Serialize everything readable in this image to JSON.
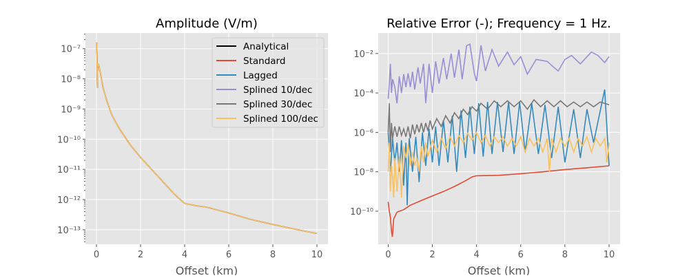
{
  "chart_data": [
    {
      "type": "line",
      "title": "Amplitude (V/m)",
      "xlabel": "Offset (km)",
      "ylabel": "",
      "xlim": [
        -0.5,
        10.5
      ],
      "ylim": [
        3.3e-14,
        3.3e-07
      ],
      "yscale": "log",
      "xticks": [
        0,
        2,
        4,
        6,
        8,
        10
      ],
      "yticks": [
        1e-07,
        1e-08,
        1e-09,
        1e-10,
        1e-11,
        1e-12,
        1e-13
      ],
      "grid": true,
      "legend": "upper right",
      "x": [
        0,
        0.02,
        0.04,
        0.06,
        0.1,
        0.2,
        0.3,
        0.5,
        0.7,
        1.0,
        1.5,
        2.0,
        2.5,
        3.0,
        3.5,
        3.8,
        4.0,
        4.5,
        5.0,
        6.0,
        7.0,
        8.0,
        9.0,
        10.0
      ],
      "series": [
        {
          "name": "Analytical",
          "color": "#000000"
        },
        {
          "name": "Standard",
          "color": "#E24A33"
        },
        {
          "name": "Lagged",
          "color": "#348ABD"
        },
        {
          "name": "Splined 10/dec",
          "color": "#988ED5"
        },
        {
          "name": "Splined 30/dec",
          "color": "#777777"
        },
        {
          "name": "Splined 100/dec",
          "color": "#FBC15E"
        }
      ],
      "values": [
        1.6e-07,
        1.5e-07,
        5e-09,
        3.2e-08,
        3e-08,
        1.3e-08,
        5e-09,
        1.6e-09,
        6.3e-10,
        2.5e-10,
        7e-11,
        2.5e-11,
        1e-11,
        4e-12,
        1.6e-12,
        1e-12,
        7.5e-13,
        6.3e-13,
        5.6e-13,
        3.6e-13,
        2.2e-13,
        1.5e-13,
        1.05e-13,
        7.5e-14
      ]
    },
    {
      "type": "line",
      "title": "Relative Error (-); Frequency = 1 Hz.",
      "xlabel": "Offset (km)",
      "ylabel": "",
      "xlim": [
        -0.45,
        10.5
      ],
      "ylim": [
        2.1e-12,
        0.11
      ],
      "yscale": "log",
      "xticks": [
        0,
        2,
        4,
        6,
        8,
        10
      ],
      "yticks": [
        0.01,
        0.0001,
        1e-06,
        1e-08,
        1e-10
      ],
      "grid": true,
      "series": [
        {
          "name": "Standard",
          "color": "#E24A33",
          "points": [
            [
              0,
              3e-10
            ],
            [
              0.05,
              1e-10
            ],
            [
              0.1,
              5e-11
            ],
            [
              0.15,
              1e-11
            ],
            [
              0.19,
              5e-12
            ],
            [
              0.25,
              4e-11
            ],
            [
              0.4,
              9e-11
            ],
            [
              0.7,
              1.2e-10
            ],
            [
              1.0,
              2e-10
            ],
            [
              1.5,
              3.5e-10
            ],
            [
              2.0,
              6e-10
            ],
            [
              2.5,
              1e-09
            ],
            [
              3.0,
              1.8e-09
            ],
            [
              3.5,
              3.5e-09
            ],
            [
              3.8,
              5.5e-09
            ],
            [
              4.0,
              6.3e-09
            ],
            [
              5.0,
              6.6e-09
            ],
            [
              6.0,
              8e-09
            ],
            [
              7.0,
              1e-08
            ],
            [
              8.0,
              1.3e-08
            ],
            [
              9.0,
              1.6e-08
            ],
            [
              10.0,
              2e-08
            ]
          ]
        },
        {
          "name": "Lagged",
          "color": "#348ABD",
          "points": [
            [
              0,
              1e-06
            ],
            [
              0.1,
              1e-08
            ],
            [
              0.2,
              5e-07
            ],
            [
              0.3,
              3e-08
            ],
            [
              0.4,
              3e-07
            ],
            [
              0.5,
              1e-08
            ],
            [
              0.6,
              4e-07
            ],
            [
              0.7,
              2e-09
            ],
            [
              0.8,
              3e-07
            ],
            [
              0.86,
              2e-10
            ],
            [
              0.95,
              5e-07
            ],
            [
              1.1,
              1e-08
            ],
            [
              1.25,
              6e-07
            ],
            [
              1.4,
              3e-09
            ],
            [
              1.55,
              1e-06
            ],
            [
              1.7,
              2e-08
            ],
            [
              1.85,
              1.5e-06
            ],
            [
              2.0,
              3e-08
            ],
            [
              2.15,
              2e-06
            ],
            [
              2.3,
              2e-08
            ],
            [
              2.5,
              4e-06
            ],
            [
              2.7,
              3e-08
            ],
            [
              2.9,
              7e-06
            ],
            [
              3.1,
              1e-08
            ],
            [
              3.3,
              1.3e-05
            ],
            [
              3.5,
              5e-08
            ],
            [
              3.7,
              2e-05
            ],
            [
              3.9,
              8e-08
            ],
            [
              4.1,
              3e-05
            ],
            [
              4.3,
              6e-08
            ],
            [
              4.5,
              3.5e-05
            ],
            [
              4.7,
              8e-08
            ],
            [
              4.95,
              3.5e-05
            ],
            [
              5.2,
              1e-07
            ],
            [
              5.45,
              3.5e-05
            ],
            [
              5.7,
              8e-08
            ],
            [
              5.95,
              3.5e-05
            ],
            [
              6.2,
              1e-07
            ],
            [
              6.5,
              3e-05
            ],
            [
              6.8,
              8e-08
            ],
            [
              7.1,
              2.5e-05
            ],
            [
              7.4,
              5e-08
            ],
            [
              7.7,
              2e-05
            ],
            [
              8.0,
              3e-08
            ],
            [
              8.4,
              1.5e-05
            ],
            [
              8.7,
              5e-08
            ],
            [
              9.0,
              1.5e-05
            ],
            [
              9.3,
              3e-07
            ],
            [
              9.8,
              0.00015
            ],
            [
              10,
              2e-08
            ]
          ]
        },
        {
          "name": "Splined 10/dec",
          "color": "#988ED5",
          "points": [
            [
              0,
              5e-05
            ],
            [
              0.05,
              0.0003
            ],
            [
              0.1,
              0.003
            ],
            [
              0.15,
              0.0001
            ],
            [
              0.2,
              0.0005
            ],
            [
              0.3,
              0.0002
            ],
            [
              0.4,
              3e-05
            ],
            [
              0.5,
              0.0007
            ],
            [
              0.6,
              0.0001
            ],
            [
              0.7,
              0.0009
            ],
            [
              0.8,
              0.0002
            ],
            [
              0.9,
              0.001
            ],
            [
              1.0,
              0.0002
            ],
            [
              1.1,
              0.0012
            ],
            [
              1.2,
              0.00015
            ],
            [
              1.35,
              0.002
            ],
            [
              1.45,
              0.0003
            ],
            [
              1.6,
              0.003
            ],
            [
              1.7,
              3e-05
            ],
            [
              1.85,
              0.003
            ],
            [
              2.0,
              0.0001
            ],
            [
              2.15,
              0.004
            ],
            [
              2.3,
              0.0003
            ],
            [
              2.5,
              0.006
            ],
            [
              2.65,
              0.0005
            ],
            [
              2.85,
              0.01
            ],
            [
              3.0,
              0.0006
            ],
            [
              3.2,
              0.016
            ],
            [
              3.35,
              0.0005
            ],
            [
              3.55,
              0.025
            ],
            [
              3.7,
              0.03
            ],
            [
              3.9,
              0.001
            ],
            [
              4.0,
              0.0004
            ],
            [
              4.2,
              0.026
            ],
            [
              4.4,
              0.0013
            ],
            [
              4.7,
              0.016
            ],
            [
              5.0,
              0.0023
            ],
            [
              5.4,
              0.012
            ],
            [
              5.7,
              0.0027
            ],
            [
              6.0,
              0.007
            ],
            [
              6.3,
              0.0009
            ],
            [
              6.7,
              0.005
            ],
            [
              7.2,
              0.004
            ],
            [
              7.5,
              0.002
            ],
            [
              7.7,
              0.0013
            ],
            [
              8.0,
              0.005
            ],
            [
              8.3,
              0.008
            ],
            [
              8.7,
              0.003
            ],
            [
              9.2,
              0.012
            ],
            [
              9.5,
              0.008
            ],
            [
              9.8,
              0.0035
            ],
            [
              10,
              0.007
            ]
          ]
        },
        {
          "name": "Splined 30/dec",
          "color": "#777777",
          "points": [
            [
              0,
              1e-06
            ],
            [
              0.05,
              3e-05
            ],
            [
              0.1,
              1e-07
            ],
            [
              0.15,
              3e-06
            ],
            [
              0.2,
              5e-07
            ],
            [
              0.3,
              2e-06
            ],
            [
              0.4,
              6e-07
            ],
            [
              0.5,
              2e-06
            ],
            [
              0.6,
              7e-07
            ],
            [
              0.7,
              1.5e-06
            ],
            [
              0.8,
              6e-07
            ],
            [
              0.9,
              2e-06
            ],
            [
              1.0,
              5e-07
            ],
            [
              1.1,
              2.5e-06
            ],
            [
              1.2,
              8e-07
            ],
            [
              1.3,
              2.5e-06
            ],
            [
              1.4,
              1e-06
            ],
            [
              1.5,
              3e-06
            ],
            [
              1.6,
              1e-06
            ],
            [
              1.7,
              3e-06
            ],
            [
              1.8,
              1.2e-06
            ],
            [
              1.9,
              4e-06
            ],
            [
              2.0,
              1.5e-06
            ],
            [
              2.2,
              5e-06
            ],
            [
              2.4,
              2e-06
            ],
            [
              2.6,
              7e-06
            ],
            [
              2.8,
              3e-06
            ],
            [
              3.0,
              1e-05
            ],
            [
              3.2,
              5e-06
            ],
            [
              3.4,
              1.5e-05
            ],
            [
              3.6,
              8e-06
            ],
            [
              3.8,
              2e-05
            ],
            [
              4.0,
              1.2e-05
            ],
            [
              4.2,
              3e-05
            ],
            [
              4.5,
              1.5e-05
            ],
            [
              4.8,
              4e-05
            ],
            [
              5.1,
              2e-05
            ],
            [
              5.4,
              4e-05
            ],
            [
              5.7,
              2e-05
            ],
            [
              6.0,
              4e-05
            ],
            [
              6.3,
              1.5e-05
            ],
            [
              6.6,
              4.5e-05
            ],
            [
              6.9,
              2e-05
            ],
            [
              7.2,
              4e-05
            ],
            [
              7.5,
              2e-05
            ],
            [
              7.8,
              4e-05
            ],
            [
              8.1,
              2e-05
            ],
            [
              8.4,
              3.5e-05
            ],
            [
              8.7,
              2e-05
            ],
            [
              9.0,
              3.5e-05
            ],
            [
              9.3,
              2e-05
            ],
            [
              9.6,
              3.5e-05
            ],
            [
              10,
              2.5e-05
            ]
          ]
        },
        {
          "name": "Splined 100/dec",
          "color": "#FBC15E",
          "points": [
            [
              0,
              1e-08
            ],
            [
              0.05,
              3e-07
            ],
            [
              0.1,
              1e-09
            ],
            [
              0.15,
              2e-08
            ],
            [
              0.2,
              5e-09
            ],
            [
              0.25,
              5e-10
            ],
            [
              0.3,
              5e-08
            ],
            [
              0.4,
              1e-09
            ],
            [
              0.5,
              6e-08
            ],
            [
              0.6,
              5e-10
            ],
            [
              0.7,
              2e-07
            ],
            [
              0.8,
              5e-08
            ],
            [
              0.9,
              2.5e-07
            ],
            [
              1.0,
              2e-08
            ],
            [
              1.1,
              1e-07
            ],
            [
              1.2,
              2e-08
            ],
            [
              1.3,
              5e-08
            ],
            [
              1.4,
              1e-08
            ],
            [
              1.5,
              2e-07
            ],
            [
              1.6,
              3e-08
            ],
            [
              1.7,
              3e-07
            ],
            [
              1.8,
              6e-08
            ],
            [
              2.0,
              4e-07
            ],
            [
              2.2,
              1e-07
            ],
            [
              2.4,
              5e-07
            ],
            [
              2.6,
              1.5e-07
            ],
            [
              2.8,
              6e-07
            ],
            [
              3.0,
              2e-07
            ],
            [
              3.2,
              7e-07
            ],
            [
              3.4,
              3e-07
            ],
            [
              3.6,
              9e-07
            ],
            [
              3.8,
              4e-07
            ],
            [
              4.0,
              1e-06
            ],
            [
              4.2,
              3e-07
            ],
            [
              4.4,
              7e-07
            ],
            [
              4.6,
              2e-07
            ],
            [
              4.8,
              6e-07
            ],
            [
              5.0,
              3e-07
            ],
            [
              5.2,
              6e-07
            ],
            [
              5.4,
              2e-07
            ],
            [
              5.6,
              5e-07
            ],
            [
              5.8,
              2e-07
            ],
            [
              6.0,
              6e-07
            ],
            [
              6.2,
              1e-07
            ],
            [
              6.4,
              5e-07
            ],
            [
              6.6,
              2e-07
            ],
            [
              6.8,
              5e-07
            ],
            [
              7.0,
              1e-07
            ],
            [
              7.2,
              5e-07
            ],
            [
              7.3,
              1e-08
            ],
            [
              7.4,
              5e-07
            ],
            [
              7.6,
              1e-07
            ],
            [
              7.8,
              5e-07
            ],
            [
              8.0,
              2e-07
            ],
            [
              8.2,
              5e-07
            ],
            [
              8.4,
              1e-07
            ],
            [
              8.6,
              5e-07
            ],
            [
              8.8,
              2e-07
            ],
            [
              9.0,
              6e-07
            ],
            [
              9.2,
              1e-07
            ],
            [
              9.4,
              5e-07
            ],
            [
              9.6,
              2e-07
            ],
            [
              9.8,
              5e-07
            ],
            [
              9.9,
              3e-08
            ],
            [
              10,
              3e-07
            ]
          ]
        }
      ]
    }
  ]
}
